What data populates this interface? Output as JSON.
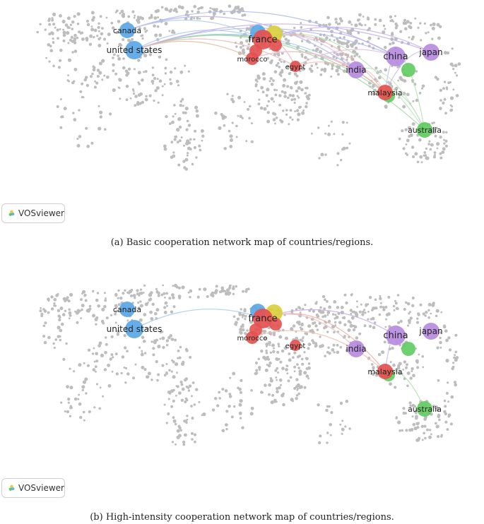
{
  "panels": [
    {
      "id": "a",
      "caption": "(a) Basic cooperation network map of countries/regions.",
      "badge": "VOSviewer",
      "nodes": [
        {
          "label": "canada",
          "color": "#5aa7e6",
          "cluster": "blue"
        },
        {
          "label": "united states",
          "color": "#5aa7e6",
          "cluster": "blue"
        },
        {
          "label": "france",
          "color": "#e55050",
          "cluster": "red"
        },
        {
          "label": "morocco",
          "color": "#e55050",
          "cluster": "red"
        },
        {
          "label": "egypt",
          "color": "#e55050",
          "cluster": "red"
        },
        {
          "label": "india",
          "color": "#b78be0",
          "cluster": "purple"
        },
        {
          "label": "china",
          "color": "#b78be0",
          "cluster": "purple"
        },
        {
          "label": "japan",
          "color": "#b78be0",
          "cluster": "purple"
        },
        {
          "label": "malaysia",
          "color": "#e55050",
          "cluster": "red"
        },
        {
          "label": "australia",
          "color": "#5fcb5f",
          "cluster": "green"
        }
      ]
    },
    {
      "id": "b",
      "caption": "(b) High-intensity cooperation network map of countries/regions.",
      "badge": "VOSviewer",
      "nodes": [
        {
          "label": "canada",
          "color": "#5aa7e6",
          "cluster": "blue"
        },
        {
          "label": "united states",
          "color": "#5aa7e6",
          "cluster": "blue"
        },
        {
          "label": "france",
          "color": "#e55050",
          "cluster": "red"
        },
        {
          "label": "morocco",
          "color": "#e55050",
          "cluster": "red"
        },
        {
          "label": "egypt",
          "color": "#e55050",
          "cluster": "red"
        },
        {
          "label": "india",
          "color": "#b78be0",
          "cluster": "purple"
        },
        {
          "label": "china",
          "color": "#b78be0",
          "cluster": "purple"
        },
        {
          "label": "japan",
          "color": "#b78be0",
          "cluster": "purple"
        },
        {
          "label": "malaysia",
          "color": "#e55050",
          "cluster": "red"
        },
        {
          "label": "australia",
          "color": "#5fcb5f",
          "cluster": "green"
        }
      ]
    }
  ],
  "colors": {
    "blue": "#5aa7e6",
    "red": "#e55050",
    "yellow": "#d9cf3a",
    "purple": "#b78be0",
    "green": "#5fcb5f",
    "dots": "#bdbdbd"
  }
}
